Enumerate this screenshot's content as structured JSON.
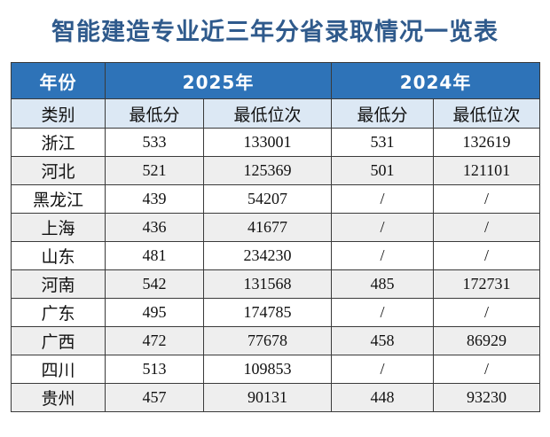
{
  "title": "智能建造专业近三年分省录取情况一览表",
  "header": {
    "year_label": "年份",
    "year_2025": "2025年",
    "year_2024": "2024年",
    "category_label": "类别",
    "min_score": "最低分",
    "min_rank": "最低位次"
  },
  "rows": [
    {
      "province": "浙江",
      "score_2025": "533",
      "rank_2025": "133001",
      "score_2024": "531",
      "rank_2024": "132619"
    },
    {
      "province": "河北",
      "score_2025": "521",
      "rank_2025": "125369",
      "score_2024": "501",
      "rank_2024": "121101"
    },
    {
      "province": "黑龙江",
      "score_2025": "439",
      "rank_2025": "54207",
      "score_2024": "/",
      "rank_2024": "/"
    },
    {
      "province": "上海",
      "score_2025": "436",
      "rank_2025": "41677",
      "score_2024": "/",
      "rank_2024": "/"
    },
    {
      "province": "山东",
      "score_2025": "481",
      "rank_2025": "234230",
      "score_2024": "/",
      "rank_2024": "/"
    },
    {
      "province": "河南",
      "score_2025": "542",
      "rank_2025": "131568",
      "score_2024": "485",
      "rank_2024": "172731"
    },
    {
      "province": "广东",
      "score_2025": "495",
      "rank_2025": "174785",
      "score_2024": "/",
      "rank_2024": "/"
    },
    {
      "province": "广西",
      "score_2025": "472",
      "rank_2025": "77678",
      "score_2024": "458",
      "rank_2024": "86929"
    },
    {
      "province": "四川",
      "score_2025": "513",
      "rank_2025": "109853",
      "score_2024": "/",
      "rank_2024": "/"
    },
    {
      "province": "贵州",
      "score_2025": "457",
      "rank_2025": "90131",
      "score_2024": "448",
      "rank_2024": "93230"
    }
  ],
  "colors": {
    "title": "#2f5a8c",
    "year_header_bg": "#2e73b8",
    "sub_header_bg": "#dce8f4",
    "stripe_bg": "#eeeeee"
  }
}
